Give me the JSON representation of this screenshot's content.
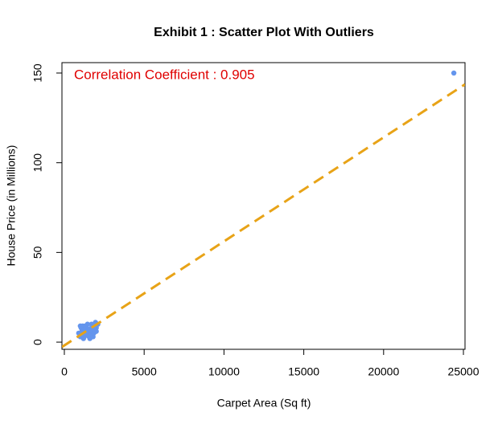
{
  "chart_data": {
    "type": "scatter",
    "title": "Exhibit 1 : Scatter Plot With Outliers",
    "x_label": "Carpet Area (Sq ft)",
    "y_label": "House Price (in Millions)",
    "annotation": "Correlation Coefficient : 0.905",
    "annotation_color": "#e00000",
    "color": "#6495ed",
    "x": [
      1000,
      1100,
      1200,
      1300,
      1400,
      1500,
      1600,
      1700,
      1800,
      1900,
      2000,
      2100,
      900,
      1050,
      1150,
      1250,
      1350,
      1450,
      1550,
      1650,
      1750,
      1850,
      1950,
      1000,
      1200,
      1400,
      1600,
      1800,
      2000,
      1100,
      1300,
      1500,
      1700,
      1900,
      1250,
      1450,
      1650,
      1850,
      24400
    ],
    "values": [
      3,
      4,
      5,
      6,
      5,
      7,
      6,
      8,
      7,
      9,
      8,
      10,
      5,
      8,
      9,
      3,
      4,
      10,
      3,
      5,
      4,
      6,
      11,
      9,
      2,
      8,
      2,
      3,
      6,
      6,
      9,
      4,
      10,
      7,
      7,
      6,
      7,
      5,
      150
    ],
    "fit_line": {
      "x": [
        -150,
        25100
      ],
      "y": [
        -2.7,
        143.7
      ],
      "color": "#e8a317"
    },
    "xlim": [
      -150,
      25100
    ],
    "ylim": [
      -4,
      155.8
    ],
    "xticks": [
      0,
      5000,
      10000,
      15000,
      20000,
      25000
    ],
    "yticks": [
      0,
      50,
      100,
      150
    ]
  }
}
